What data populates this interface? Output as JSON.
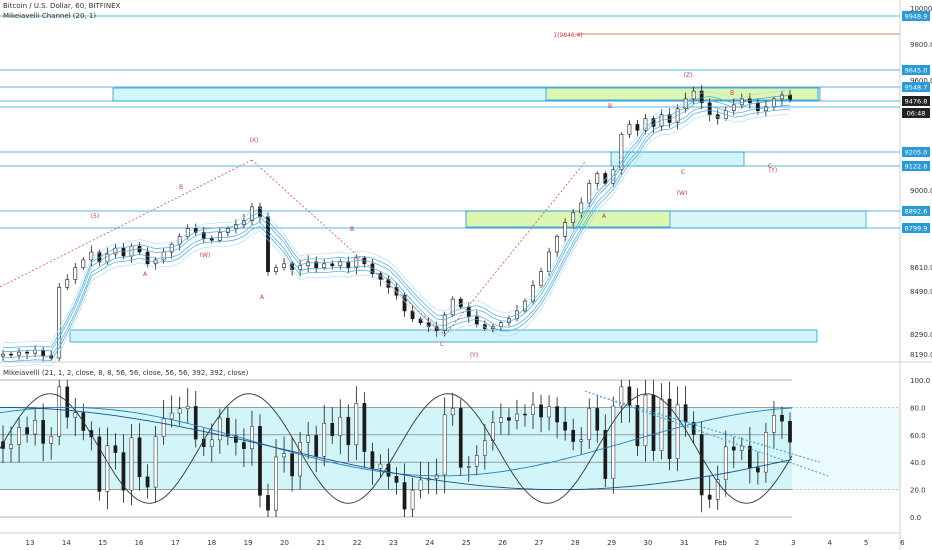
{
  "header": {
    "symbol": "Bitcoin / U.S. Dollar, 60, BITFINEX",
    "indicator": "Mikeiavelli Channel (20, 1)",
    "osc_label": "Mikeiavelli (21, 1, 2, close, 8, 8, 56, 56, close, 56, 56, 392, 392, close)"
  },
  "colors": {
    "candle": "#1a1a1a",
    "channel_outer": "#b0d8f0",
    "channel_mid": "#4aa8d8",
    "zone_cyan": "#7fe3f0",
    "zone_yellow": "#dff5a0",
    "level_line": "#2a9ad6",
    "wave_label": "#c23b3b",
    "price_badge": "#2a9ad6",
    "current_badge": "#222222"
  },
  "chart_data": {
    "type": "candlestick",
    "y_axis": {
      "ticks": [
        "10000.0",
        "9800.0",
        "9600.0",
        "9000.0",
        "8610.0",
        "8490.0",
        "8290.0",
        "8190.0"
      ],
      "price_badges": [
        "9948.9",
        "9645.0",
        "9548.7",
        "9476.8",
        "06:48",
        "9205.0",
        "9122.8",
        "8892.6",
        "8799.9"
      ],
      "current_price": "9476.8",
      "countdown": "06:48",
      "target_label": "1(9846.4)"
    },
    "x_axis": {
      "ticks": [
        "13",
        "14",
        "15",
        "16",
        "17",
        "18",
        "19",
        "20",
        "21",
        "22",
        "23",
        "24",
        "25",
        "26",
        "27",
        "28",
        "29",
        "30",
        "31",
        "Feb",
        "2",
        "3",
        "4",
        "5",
        "6"
      ]
    },
    "wave_labels": [
      "(5)",
      "B",
      "(W)",
      "A",
      "(X)",
      "A",
      "B",
      "C",
      "(Y)",
      "B",
      "A",
      "(Z)",
      "B",
      "C",
      "(W)",
      "C",
      "(Y)"
    ],
    "oscillator": {
      "ticks": [
        "100.0",
        "80.0",
        "60.0",
        "40.0",
        "20.0",
        "0.0"
      ],
      "range": [
        0,
        100
      ]
    },
    "price_series_close": [
      8180,
      8175,
      8190,
      8185,
      8200,
      8172,
      8160,
      8520,
      8560,
      8620,
      8660,
      8700,
      8650,
      8690,
      8720,
      8680,
      8730,
      8700,
      8640,
      8660,
      8700,
      8740,
      8780,
      8820,
      8800,
      8770,
      8760,
      8800,
      8820,
      8840,
      8860,
      8930,
      8880,
      8600,
      8620,
      8640,
      8610,
      8630,
      8650,
      8620,
      8640,
      8630,
      8650,
      8620,
      8670,
      8640,
      8590,
      8560,
      8520,
      8480,
      8400,
      8360,
      8340,
      8320,
      8300,
      8380,
      8460,
      8420,
      8370,
      8330,
      8310,
      8320,
      8340,
      8360,
      8400,
      8450,
      8530,
      8600,
      8700,
      8780,
      8850,
      8900,
      8950,
      9050,
      9100,
      9050,
      9120,
      9300,
      9350,
      9320,
      9380,
      9340,
      9400,
      9360,
      9430,
      9480,
      9520,
      9460,
      9400,
      9380,
      9420,
      9450,
      9480,
      9460,
      9420,
      9440,
      9480,
      9500,
      9476
    ]
  }
}
